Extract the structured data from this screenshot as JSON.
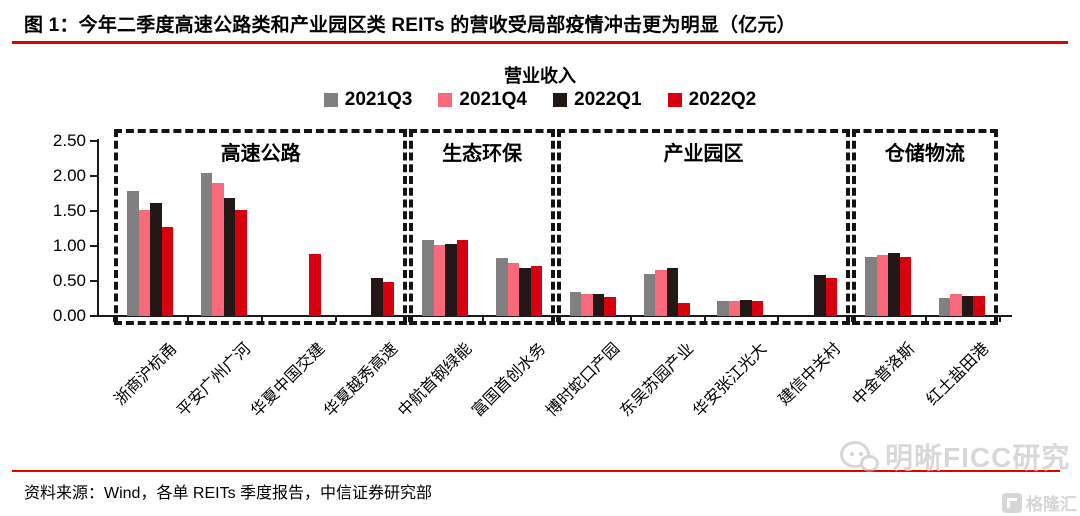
{
  "header": {
    "title": "图 1：今年二季度高速公路类和产业园区类 REITs 的营收受局部疫情冲击更为明显（亿元）"
  },
  "chart_data": {
    "type": "bar",
    "title": "营业收入",
    "categories": [
      "浙商沪杭甬",
      "平安广州广河",
      "华夏中国交建",
      "华夏越秀高速",
      "中航首钢绿能",
      "富国首创水务",
      "博时蛇口产园",
      "东吴苏园产业",
      "华安张江光大",
      "建信中关村",
      "中金普洛斯",
      "红土盐田港"
    ],
    "series": [
      {
        "name": "2021Q3",
        "color": "#808080",
        "values": [
          1.78,
          2.05,
          null,
          null,
          1.09,
          0.83,
          0.35,
          0.6,
          0.22,
          null,
          0.85,
          0.26
        ]
      },
      {
        "name": "2021Q4",
        "color": "#f8697a",
        "values": [
          1.52,
          1.9,
          null,
          null,
          1.01,
          0.76,
          0.32,
          0.66,
          0.22,
          null,
          0.87,
          0.31
        ]
      },
      {
        "name": "2022Q1",
        "color": "#231815",
        "values": [
          1.61,
          1.68,
          null,
          0.55,
          1.03,
          0.68,
          0.31,
          0.68,
          0.23,
          0.59,
          0.9,
          0.28
        ]
      },
      {
        "name": "2022Q2",
        "color": "#d7000f",
        "values": [
          1.27,
          1.52,
          0.89,
          0.48,
          1.09,
          0.71,
          0.27,
          0.19,
          0.22,
          0.54,
          0.84,
          0.28
        ]
      }
    ],
    "sections": [
      {
        "label": "高速公路",
        "from": 0,
        "to": 3
      },
      {
        "label": "生态环保",
        "from": 4,
        "to": 5
      },
      {
        "label": "产业园区",
        "from": 6,
        "to": 9
      },
      {
        "label": "仓储物流",
        "from": 10,
        "to": 11
      }
    ],
    "ylim": [
      0,
      2.5
    ],
    "yticks": [
      "0.00",
      "0.50",
      "1.00",
      "1.50",
      "2.00",
      "2.50"
    ],
    "grid": false,
    "legend_position": "top"
  },
  "footer": {
    "source": "资料来源：Wind，各单 REITs 季度报告，中信证券研究部"
  },
  "watermarks": {
    "wechat_text": "明晰FICC研究",
    "gelonghui_text": "格隆汇"
  },
  "colors": {
    "rule_red": "#e60000",
    "axis_black": "#1a1a1a"
  }
}
